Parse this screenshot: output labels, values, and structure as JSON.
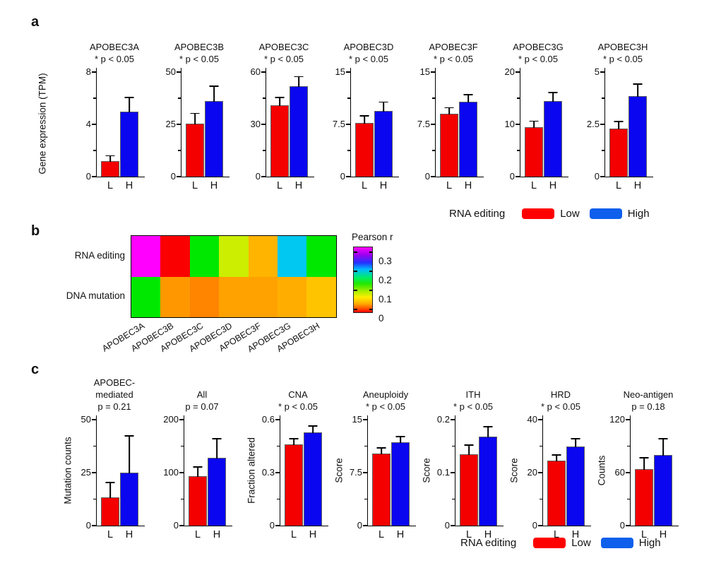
{
  "figure": {
    "background": "#ffffff",
    "text_color": "#111111"
  },
  "colors": {
    "bar_low": "#f40000",
    "bar_high": "#0a06f0",
    "bar_edge": "#606060",
    "axis": "#000000",
    "legend_low_swatch": "#ff0000",
    "legend_high_swatch": "#0e5fec"
  },
  "panels": {
    "a": {
      "label": "a",
      "y_axis_title": "Gene expression (TPM)",
      "legend": {
        "title": "RNA editing",
        "low_label": "Low",
        "high_label": "High"
      }
    },
    "b": {
      "label": "b",
      "row_labels": {
        "0": "RNA editing",
        "1": "DNA mutation"
      },
      "colorbar": {
        "title": "Pearson r",
        "tick_labels": {
          "0": "0.3",
          "1": "0.2",
          "2": "0.1",
          "3": "0"
        }
      }
    },
    "c": {
      "label": "c",
      "legend": {
        "title": "RNA editing",
        "low_label": "Low",
        "high_label": "High"
      }
    }
  },
  "chart_data": [
    {
      "id": "a1",
      "panel": "a",
      "type": "bar",
      "title_lines": [
        "APOBEC3A"
      ],
      "p_label": "* p < 0.05",
      "categories": [
        "L",
        "H"
      ],
      "values": [
        1.2,
        5.0
      ],
      "error_top": [
        1.55,
        6.0
      ],
      "ylim": [
        0,
        8
      ],
      "ytick_values": [
        0,
        4,
        8
      ],
      "ytick_labels": [
        "0",
        "4",
        "8"
      ],
      "ylabel": "Gene expression (TPM)"
    },
    {
      "id": "a2",
      "panel": "a",
      "type": "bar",
      "title_lines": [
        "APOBEC3B"
      ],
      "p_label": "* p < 0.05",
      "categories": [
        "L",
        "H"
      ],
      "values": [
        25.5,
        36.0
      ],
      "error_top": [
        30.0,
        43.0
      ],
      "ylim": [
        0,
        50
      ],
      "ytick_values": [
        0,
        25,
        50
      ],
      "ytick_labels": [
        "0",
        "25",
        "50"
      ]
    },
    {
      "id": "a3",
      "panel": "a",
      "type": "bar",
      "title_lines": [
        "APOBEC3C"
      ],
      "p_label": "* p < 0.05",
      "categories": [
        "L",
        "H"
      ],
      "values": [
        41.0,
        52.0
      ],
      "error_top": [
        45.0,
        57.0
      ],
      "ylim": [
        0,
        60
      ],
      "ytick_values": [
        0,
        30,
        60
      ],
      "ytick_labels": [
        "0",
        "30",
        "60"
      ]
    },
    {
      "id": "a4",
      "panel": "a",
      "type": "bar",
      "title_lines": [
        "APOBEC3D"
      ],
      "p_label": "* p < 0.05",
      "categories": [
        "L",
        "H"
      ],
      "values": [
        7.7,
        9.4
      ],
      "error_top": [
        8.6,
        10.6
      ],
      "ylim": [
        0,
        15
      ],
      "ytick_values": [
        0,
        7.5,
        15
      ],
      "ytick_labels": [
        "0",
        "7.5",
        "15"
      ]
    },
    {
      "id": "a5",
      "panel": "a",
      "type": "bar",
      "title_lines": [
        "APOBEC3F"
      ],
      "p_label": "* p < 0.05",
      "categories": [
        "L",
        "H"
      ],
      "values": [
        9.0,
        10.7
      ],
      "error_top": [
        9.8,
        11.7
      ],
      "ylim": [
        0,
        15
      ],
      "ytick_values": [
        0,
        7.5,
        15
      ],
      "ytick_labels": [
        "0",
        "7.5",
        "15"
      ]
    },
    {
      "id": "a6",
      "panel": "a",
      "type": "bar",
      "title_lines": [
        "APOBEC3G"
      ],
      "p_label": "* p < 0.05",
      "categories": [
        "L",
        "H"
      ],
      "values": [
        9.5,
        14.5
      ],
      "error_top": [
        10.5,
        16.0
      ],
      "ylim": [
        0,
        20
      ],
      "ytick_values": [
        0,
        10,
        20
      ],
      "ytick_labels": [
        "0",
        "10",
        "20"
      ]
    },
    {
      "id": "a7",
      "panel": "a",
      "type": "bar",
      "title_lines": [
        "APOBEC3H"
      ],
      "p_label": "* p < 0.05",
      "categories": [
        "L",
        "H"
      ],
      "values": [
        2.3,
        3.85
      ],
      "error_top": [
        2.6,
        4.4
      ],
      "ylim": [
        0,
        5
      ],
      "ytick_values": [
        0,
        2.5,
        5
      ],
      "ytick_labels": [
        "0",
        "2.5",
        "5"
      ]
    },
    {
      "id": "b",
      "type": "heatmap",
      "rows": [
        "RNA editing",
        "DNA mutation"
      ],
      "columns": [
        "APOBEC3A",
        "APOBEC3B",
        "APOBEC3C",
        "APOBEC3D",
        "APOBEC3F",
        "APOBEC3G",
        "APOBEC3H"
      ],
      "cell_colors": [
        [
          "#ff00ff",
          "#fa0000",
          "#00e800",
          "#ccee00",
          "#ffb400",
          "#00c8f0",
          "#00e800"
        ],
        [
          "#00e800",
          "#ff9800",
          "#ff8400",
          "#ffa200",
          "#ffa200",
          "#ffae00",
          "#ffc400"
        ]
      ],
      "pearson_r_approx": [
        [
          0.3,
          0.01,
          0.15,
          0.11,
          0.06,
          0.21,
          0.15
        ],
        [
          0.15,
          0.05,
          0.04,
          0.05,
          0.05,
          0.06,
          0.07
        ]
      ],
      "scale": {
        "title": "Pearson r",
        "min": 0,
        "max": 0.3,
        "tick_labels": [
          "0.3",
          "0.2",
          "0.1",
          "0"
        ]
      }
    },
    {
      "id": "c1",
      "panel": "c",
      "type": "bar",
      "title_lines": [
        "APOBEC-",
        "mediated"
      ],
      "p_label": "p = 0.21",
      "categories": [
        "L",
        "H"
      ],
      "values": [
        13.5,
        25.0
      ],
      "error_top": [
        20.0,
        42.0
      ],
      "ylim": [
        0,
        50
      ],
      "ytick_values": [
        0,
        25,
        50
      ],
      "ytick_labels": [
        "0",
        "25",
        "50"
      ],
      "ylabel": "Mutation counts"
    },
    {
      "id": "c2",
      "panel": "c",
      "type": "bar",
      "title_lines": [
        "All"
      ],
      "p_label": "p = 0.07",
      "categories": [
        "L",
        "H"
      ],
      "values": [
        93.0,
        128.0
      ],
      "error_top": [
        110.0,
        163.0
      ],
      "ylim": [
        0,
        200
      ],
      "ytick_values": [
        0,
        100,
        200
      ],
      "ytick_labels": [
        "0",
        "100",
        "200"
      ]
    },
    {
      "id": "c3",
      "panel": "c",
      "type": "bar",
      "title_lines": [
        "CNA"
      ],
      "p_label": "* p < 0.05",
      "categories": [
        "L",
        "H"
      ],
      "values": [
        0.46,
        0.53
      ],
      "error_top": [
        0.49,
        0.56
      ],
      "ylim": [
        0,
        0.6
      ],
      "ytick_values": [
        0,
        0.3,
        0.6
      ],
      "ytick_labels": [
        "0",
        "0.3",
        "0.6"
      ],
      "ylabel": "Fraction altered",
      "gap_before": true
    },
    {
      "id": "c4",
      "panel": "c",
      "type": "bar",
      "title_lines": [
        "Aneuploidy"
      ],
      "p_label": "* p < 0.05",
      "categories": [
        "L",
        "H"
      ],
      "values": [
        10.2,
        11.8
      ],
      "error_top": [
        10.9,
        12.5
      ],
      "ylim": [
        0,
        15
      ],
      "ytick_values": [
        0,
        7.5,
        15
      ],
      "ytick_labels": [
        "0",
        "7.5",
        "15"
      ],
      "ylabel": "Score"
    },
    {
      "id": "c5",
      "panel": "c",
      "type": "bar",
      "title_lines": [
        "ITH"
      ],
      "p_label": "* p < 0.05",
      "categories": [
        "L",
        "H"
      ],
      "values": [
        0.135,
        0.168
      ],
      "error_top": [
        0.151,
        0.186
      ],
      "ylim": [
        0,
        0.2
      ],
      "ytick_values": [
        0,
        0.1,
        0.2
      ],
      "ytick_labels": [
        "0",
        "0.1",
        "0.2"
      ],
      "ylabel": "Score"
    },
    {
      "id": "c6",
      "panel": "c",
      "type": "bar",
      "title_lines": [
        "HRD"
      ],
      "p_label": "* p < 0.05",
      "categories": [
        "L",
        "H"
      ],
      "values": [
        24.5,
        30.0
      ],
      "error_top": [
        26.5,
        32.5
      ],
      "ylim": [
        0,
        40
      ],
      "ytick_values": [
        0,
        20,
        40
      ],
      "ytick_labels": [
        "0",
        "20",
        "40"
      ],
      "ylabel": "Score"
    },
    {
      "id": "c7",
      "panel": "c",
      "type": "bar",
      "title_lines": [
        "Neo-antigen"
      ],
      "p_label": "p = 0.18",
      "categories": [
        "L",
        "H"
      ],
      "values": [
        64.0,
        80.0
      ],
      "error_top": [
        76.0,
        98.0
      ],
      "ylim": [
        0,
        120
      ],
      "ytick_values": [
        0,
        60,
        120
      ],
      "ytick_labels": [
        "0",
        "60",
        "120"
      ],
      "ylabel": "Counts"
    }
  ]
}
